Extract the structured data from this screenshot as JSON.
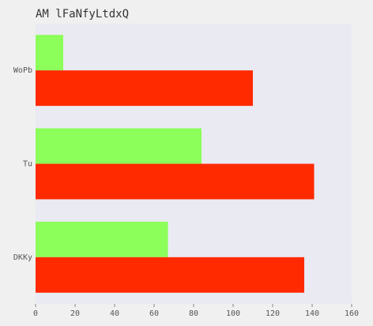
{
  "chart_data": {
    "type": "bar",
    "orientation": "horizontal",
    "title": "AM lFaNfyLtdxQ",
    "categories": [
      "WoPb",
      "Tu",
      "DKKy"
    ],
    "series": [
      {
        "color": "#8cff5a",
        "values": [
          14,
          84,
          67
        ]
      },
      {
        "color": "#ff2a00",
        "values": [
          110,
          141,
          136
        ]
      }
    ],
    "xlim": [
      0,
      160
    ],
    "x_ticks": [
      0,
      20,
      40,
      60,
      80,
      100,
      120,
      140,
      160
    ],
    "xlabel": "",
    "ylabel": "",
    "grid": false,
    "legend": "none",
    "plot_background": "#eaeaf2",
    "page_background": "#f0f0f0"
  }
}
